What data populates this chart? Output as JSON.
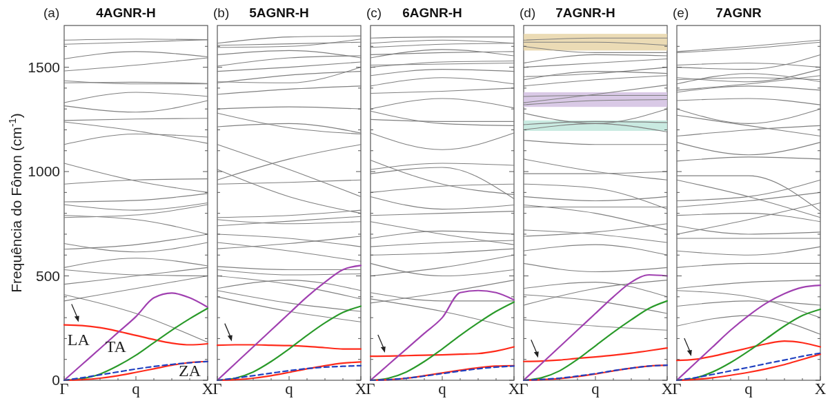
{
  "chart_data": [
    {
      "type": "line",
      "title": "4AGNR-H",
      "ylabel": "Frequência do Fônon (cm$^{-1}$)",
      "annotations": [
        "(a)",
        "LA",
        "TA",
        "ZA"
      ],
      "categories": [
        "Γ",
        null,
        null,
        null,
        "q",
        null,
        null,
        null,
        "X"
      ],
      "ylim": [
        0,
        1700
      ],
      "yticks": [
        0,
        {
          "value": 100,
          "label": null
        },
        {
          "value": 200,
          "label": null
        },
        {
          "value": 300,
          "label": null
        },
        {
          "value": 400,
          "label": null
        },
        500,
        {
          "value": 600,
          "label": null
        },
        {
          "value": 700,
          "label": null
        },
        {
          "value": 800,
          "label": null
        },
        {
          "value": 900,
          "label": null
        },
        1000,
        {
          "value": 1100,
          "label": null
        },
        {
          "value": 1200,
          "label": null
        },
        {
          "value": 1300,
          "label": null
        },
        {
          "value": 1400,
          "label": null
        },
        1500,
        {
          "value": 1600,
          "label": null
        }
      ],
      "color": "#7f7f7f",
      "series": [
        {
          "color": "#ff2a1a",
          "values": [
            265,
            262,
            252,
            235,
            215,
            195,
            178,
            170,
            175
          ]
        },
        {
          "color": "#a040b0",
          "values": [
            0,
            76,
            152,
            229,
            305,
            395,
            418,
            395,
            350
          ]
        },
        {
          "color": "#2a9a2a",
          "values": [
            0,
            8,
            30,
            70,
            120,
            180,
            240,
            295,
            345
          ]
        },
        {
          "color": "#ff2a1a",
          "values": [
            0,
            3,
            10,
            22,
            38,
            55,
            72,
            85,
            90
          ]
        },
        {
          "color": "#2040c0",
          "line_style": "dashed",
          "values": [
            0,
            12,
            26,
            40,
            54,
            66,
            76,
            84,
            90
          ]
        },
        {
          "x": [
            "Γ",
            "q",
            "X"
          ],
          "values": [
            1630,
            1635,
            1632
          ]
        },
        {
          "x": [
            "Γ",
            "q",
            "X"
          ],
          "values": [
            1610,
            1620,
            1632
          ]
        },
        {
          "x": [
            "Γ",
            "q",
            "X"
          ],
          "values": [
            1540,
            1575,
            1550
          ]
        },
        {
          "x": [
            "Γ",
            "q",
            "X"
          ],
          "values": [
            1482,
            1510,
            1545
          ]
        },
        {
          "x": [
            "Γ",
            "q",
            "X"
          ],
          "values": [
            1435,
            1420,
            1420
          ]
        },
        {
          "x": [
            "Γ",
            "q",
            "X"
          ],
          "values": [
            1425,
            1428,
            1422
          ]
        },
        {
          "x": [
            "Γ",
            "q",
            "X"
          ],
          "values": [
            1330,
            1380,
            1360
          ]
        },
        {
          "x": [
            "Γ",
            "q",
            "X"
          ],
          "values": [
            1315,
            1285,
            1340
          ]
        },
        {
          "x": [
            "Γ",
            "q",
            "X"
          ],
          "values": [
            1245,
            1252,
            1255
          ]
        },
        {
          "x": [
            "Γ",
            "q",
            "X"
          ],
          "values": [
            1238,
            1195,
            1135
          ]
        },
        {
          "x": [
            "Γ",
            "q",
            "X"
          ],
          "values": [
            1130,
            1180,
            1165
          ]
        },
        {
          "x": [
            "Γ",
            "q",
            "X"
          ],
          "values": [
            1040,
            955,
            900
          ]
        },
        {
          "x": [
            "Γ",
            "q",
            "X"
          ],
          "values": [
            940,
            960,
            965
          ]
        },
        {
          "x": [
            "Γ",
            "q",
            "X"
          ],
          "values": [
            855,
            862,
            895
          ]
        },
        {
          "x": [
            "Γ",
            "q",
            "X"
          ],
          "values": [
            842,
            815,
            850
          ]
        },
        {
          "x": [
            "Γ",
            "q",
            "X"
          ],
          "values": [
            790,
            770,
            700
          ]
        },
        {
          "x": [
            "Γ",
            "q",
            "X"
          ],
          "values": [
            780,
            792,
            842
          ]
        },
        {
          "x": [
            "Γ",
            "q",
            "X"
          ],
          "values": [
            655,
            615,
            660
          ]
        },
        {
          "x": [
            "Γ",
            "q",
            "X"
          ],
          "values": [
            628,
            650,
            700
          ]
        },
        {
          "x": [
            "Γ",
            "q",
            "X"
          ],
          "values": [
            540,
            585,
            548
          ]
        },
        {
          "x": [
            "Γ",
            "q",
            "X"
          ],
          "values": [
            530,
            505,
            500
          ]
        },
        {
          "x": [
            "Γ",
            "q",
            "X"
          ],
          "values": [
            460,
            500,
            540
          ]
        },
        {
          "x": [
            "Γ",
            "q",
            "X"
          ],
          "values": [
            410,
            320,
            182
          ]
        },
        {
          "x": [
            "Γ",
            "q",
            "X"
          ],
          "values": [
            380,
            440,
            500
          ]
        }
      ]
    },
    {
      "type": "line",
      "title": "5AGNR-H",
      "annotations": [
        "(b)"
      ],
      "tick_labels": "x",
      "categories": [
        "Γ",
        null,
        null,
        null,
        "q",
        null,
        null,
        null,
        "X"
      ],
      "ylim": [
        0,
        1700
      ],
      "yticks": [
        0,
        {
          "value": 100,
          "label": null
        },
        {
          "value": 200,
          "label": null
        },
        {
          "value": 300,
          "label": null
        },
        {
          "value": 400,
          "label": null
        },
        500,
        {
          "value": 600,
          "label": null
        },
        {
          "value": 700,
          "label": null
        },
        {
          "value": 800,
          "label": null
        },
        {
          "value": 900,
          "label": null
        },
        1000,
        {
          "value": 1100,
          "label": null
        },
        {
          "value": 1200,
          "label": null
        },
        {
          "value": 1300,
          "label": null
        },
        {
          "value": 1400,
          "label": null
        },
        1500,
        {
          "value": 1600,
          "label": null
        }
      ],
      "color": "#7f7f7f",
      "series": [
        {
          "color": "#ff2a1a",
          "values": [
            168,
            170,
            170,
            168,
            166,
            162,
            156,
            150,
            150
          ]
        },
        {
          "color": "#a040b0",
          "values": [
            0,
            80,
            160,
            240,
            320,
            400,
            470,
            530,
            550
          ]
        },
        {
          "color": "#2a9a2a",
          "values": [
            0,
            10,
            40,
            90,
            150,
            215,
            275,
            325,
            355
          ]
        },
        {
          "color": "#ff2a1a",
          "values": [
            0,
            3,
            10,
            22,
            38,
            55,
            70,
            82,
            88
          ]
        },
        {
          "color": "#2040c0",
          "line_style": "dashed",
          "values": [
            0,
            10,
            22,
            34,
            46,
            56,
            63,
            67,
            70
          ]
        },
        {
          "x": [
            "Γ",
            "q",
            "X"
          ],
          "values": [
            1615,
            1645,
            1650
          ]
        },
        {
          "x": [
            "Γ",
            "q",
            "X"
          ],
          "values": [
            1605,
            1612,
            1620
          ]
        },
        {
          "x": [
            "Γ",
            "q",
            "X"
          ],
          "values": [
            1595,
            1600,
            1635
          ]
        },
        {
          "x": [
            "Γ",
            "q",
            "X"
          ],
          "values": [
            1560,
            1580,
            1545
          ]
        },
        {
          "x": [
            "Γ",
            "q",
            "X"
          ],
          "values": [
            1505,
            1545,
            1555
          ]
        },
        {
          "x": [
            "Γ",
            "q",
            "X"
          ],
          "values": [
            1480,
            1500,
            1525
          ]
        },
        {
          "x": [
            "Γ",
            "q",
            "X"
          ],
          "values": [
            1430,
            1425,
            1500
          ]
        },
        {
          "x": [
            "Γ",
            "q",
            "X"
          ],
          "values": [
            1425,
            1462,
            1480
          ]
        },
        {
          "x": [
            "Γ",
            "q",
            "X"
          ],
          "values": [
            1370,
            1395,
            1410
          ]
        },
        {
          "x": [
            "Γ",
            "q",
            "X"
          ],
          "values": [
            1300,
            1310,
            1300
          ]
        },
        {
          "x": [
            "Γ",
            "q",
            "X"
          ],
          "values": [
            1280,
            1210,
            1180
          ]
        },
        {
          "x": [
            "Γ",
            "q",
            "X"
          ],
          "values": [
            1215,
            1230,
            1185
          ]
        },
        {
          "x": [
            "Γ",
            "q",
            "X"
          ],
          "values": [
            1130,
            1010,
            880
          ]
        },
        {
          "x": [
            "Γ",
            "q",
            "X"
          ],
          "values": [
            960,
            1060,
            1130
          ]
        },
        {
          "x": [
            "Γ",
            "q",
            "X"
          ],
          "values": [
            940,
            948,
            960
          ]
        },
        {
          "x": [
            "Γ",
            "q",
            "X"
          ],
          "values": [
            1010,
            880,
            800
          ]
        },
        {
          "x": [
            "Γ",
            "q",
            "X"
          ],
          "values": [
            780,
            790,
            815
          ]
        },
        {
          "x": [
            "Γ",
            "q",
            "X"
          ],
          "values": [
            770,
            750,
            760
          ]
        },
        {
          "x": [
            "Γ",
            "q",
            "X"
          ],
          "values": [
            740,
            762,
            785
          ]
        },
        {
          "x": [
            "Γ",
            "q",
            "X"
          ],
          "values": [
            700,
            680,
            640
          ]
        },
        {
          "x": [
            "Γ",
            "q",
            "X"
          ],
          "values": [
            660,
            620,
            570
          ]
        },
        {
          "x": [
            "Γ",
            "q",
            "X"
          ],
          "values": [
            630,
            655,
            690
          ]
        },
        {
          "x": [
            "Γ",
            "q",
            "X"
          ],
          "values": [
            545,
            530,
            530
          ]
        },
        {
          "x": [
            "Γ",
            "q",
            "X"
          ],
          "values": [
            530,
            505,
            510
          ]
        },
        {
          "x": [
            "Γ",
            "q",
            "X"
          ],
          "values": [
            500,
            460,
            390
          ]
        },
        {
          "x": [
            "Γ",
            "q",
            "X"
          ],
          "values": [
            440,
            480,
            430
          ]
        },
        {
          "x": [
            "Γ",
            "q",
            "X"
          ],
          "values": [
            430,
            370,
            330
          ]
        },
        {
          "x": [
            "Γ",
            "q",
            "X"
          ],
          "values": [
            400,
            330,
            280
          ]
        }
      ]
    },
    {
      "type": "line",
      "title": "6AGNR-H",
      "annotations": [
        "(c)"
      ],
      "tick_labels": "x",
      "categories": [
        "Γ",
        null,
        null,
        null,
        "q",
        null,
        null,
        null,
        "X"
      ],
      "ylim": [
        0,
        1700
      ],
      "yticks": [
        0,
        {
          "value": 100,
          "label": null
        },
        {
          "value": 200,
          "label": null
        },
        {
          "value": 300,
          "label": null
        },
        {
          "value": 400,
          "label": null
        },
        500,
        {
          "value": 600,
          "label": null
        },
        {
          "value": 700,
          "label": null
        },
        {
          "value": 800,
          "label": null
        },
        {
          "value": 900,
          "label": null
        },
        1000,
        {
          "value": 1100,
          "label": null
        },
        {
          "value": 1200,
          "label": null
        },
        {
          "value": 1300,
          "label": null
        },
        {
          "value": 1400,
          "label": null
        },
        1500,
        {
          "value": 1600,
          "label": null
        }
      ],
      "color": "#7f7f7f",
      "series": [
        {
          "color": "#ff2a1a",
          "values": [
            115,
            116,
            118,
            120,
            122,
            125,
            128,
            140,
            160
          ]
        },
        {
          "color": "#a040b0",
          "values": [
            0,
            75,
            150,
            225,
            300,
            420,
            430,
            420,
            385
          ]
        },
        {
          "color": "#2a9a2a",
          "values": [
            0,
            10,
            40,
            90,
            150,
            215,
            275,
            330,
            375
          ]
        },
        {
          "color": "#ff2a1a",
          "values": [
            0,
            3,
            10,
            22,
            35,
            48,
            60,
            68,
            70
          ]
        },
        {
          "color": "#2040c0",
          "line_style": "dashed",
          "values": [
            0,
            3,
            10,
            20,
            32,
            44,
            55,
            63,
            68
          ]
        },
        {
          "x": [
            "Γ",
            "q",
            "X"
          ],
          "values": [
            1640,
            1645,
            1645
          ]
        },
        {
          "x": [
            "Γ",
            "q",
            "X"
          ],
          "values": [
            1615,
            1630,
            1615
          ]
        },
        {
          "x": [
            "Γ",
            "q",
            "X"
          ],
          "values": [
            1595,
            1610,
            1615
          ]
        },
        {
          "x": [
            "Γ",
            "q",
            "X"
          ],
          "values": [
            1560,
            1570,
            1575
          ]
        },
        {
          "x": [
            "Γ",
            "q",
            "X"
          ],
          "values": [
            1545,
            1585,
            1555
          ]
        },
        {
          "x": [
            "Γ",
            "q",
            "X"
          ],
          "values": [
            1510,
            1515,
            1520
          ]
        },
        {
          "x": [
            "Γ",
            "q",
            "X"
          ],
          "values": [
            1500,
            1525,
            1530
          ]
        },
        {
          "x": [
            "Γ",
            "q",
            "X"
          ],
          "values": [
            1460,
            1490,
            1480
          ]
        },
        {
          "x": [
            "Γ",
            "q",
            "X"
          ],
          "values": [
            1410,
            1450,
            1420
          ]
        },
        {
          "x": [
            "Γ",
            "q",
            "X"
          ],
          "values": [
            1375,
            1385,
            1400
          ]
        },
        {
          "x": [
            "Γ",
            "q",
            "X"
          ],
          "values": [
            1300,
            1350,
            1305
          ]
        },
        {
          "x": [
            "Γ",
            "q",
            "X"
          ],
          "values": [
            1290,
            1230,
            1220
          ]
        },
        {
          "x": [
            "Γ",
            "q",
            "X"
          ],
          "values": [
            1250,
            1240,
            1240
          ]
        },
        {
          "x": [
            "Γ",
            "q",
            "X"
          ],
          "values": [
            1185,
            1105,
            1185
          ]
        },
        {
          "x": [
            "Γ",
            "q",
            "X"
          ],
          "values": [
            1055,
            940,
            890
          ]
        },
        {
          "x": [
            "Γ",
            "q",
            "X"
          ],
          "values": [
            1010,
            1040,
            1030
          ]
        },
        {
          "x": [
            "Γ",
            "q",
            "X"
          ],
          "values": [
            990,
            1020,
            870
          ]
        },
        {
          "x": [
            "Γ",
            "q",
            "X"
          ],
          "values": [
            900,
            930,
            940
          ]
        },
        {
          "x": [
            "Γ",
            "q",
            "X"
          ],
          "values": [
            880,
            820,
            840
          ]
        },
        {
          "x": [
            "Γ",
            "q",
            "X"
          ],
          "values": [
            790,
            800,
            810
          ]
        },
        {
          "x": [
            "Γ",
            "q",
            "X"
          ],
          "values": [
            760,
            700,
            650
          ]
        },
        {
          "x": [
            "Γ",
            "q",
            "X"
          ],
          "values": [
            680,
            715,
            700
          ]
        },
        {
          "x": [
            "Γ",
            "q",
            "X"
          ],
          "values": [
            640,
            660,
            670
          ]
        },
        {
          "x": [
            "Γ",
            "q",
            "X"
          ],
          "values": [
            600,
            610,
            630
          ]
        },
        {
          "x": [
            "Γ",
            "q",
            "X"
          ],
          "values": [
            560,
            500,
            530
          ]
        },
        {
          "x": [
            "Γ",
            "q",
            "X"
          ],
          "values": [
            500,
            540,
            600
          ]
        },
        {
          "x": [
            "Γ",
            "q",
            "X"
          ],
          "values": [
            420,
            380,
            380
          ]
        },
        {
          "x": [
            "Γ",
            "q",
            "X"
          ],
          "values": [
            390,
            330,
            250
          ]
        },
        {
          "x": [
            "Γ",
            "q",
            "X"
          ],
          "values": [
            370,
            420,
            480
          ]
        }
      ]
    },
    {
      "type": "line",
      "title": "7AGNR-H",
      "annotations": [
        "(d)"
      ],
      "tick_labels": "x",
      "categories": [
        "Γ",
        null,
        null,
        null,
        "q",
        null,
        null,
        null,
        "X"
      ],
      "ylim": [
        0,
        1700
      ],
      "yticks": [
        0,
        {
          "value": 100,
          "label": null
        },
        {
          "value": 200,
          "label": null
        },
        {
          "value": 300,
          "label": null
        },
        {
          "value": 400,
          "label": null
        },
        500,
        {
          "value": 600,
          "label": null
        },
        {
          "value": 700,
          "label": null
        },
        {
          "value": 800,
          "label": null
        },
        {
          "value": 900,
          "label": null
        },
        1000,
        {
          "value": 1100,
          "label": null
        },
        {
          "value": 1200,
          "label": null
        },
        {
          "value": 1300,
          "label": null
        },
        {
          "value": 1400,
          "label": null
        },
        1500,
        {
          "value": 1600,
          "label": null
        }
      ],
      "bands": [
        {
          "axis": "y",
          "from": 1580,
          "to": 1660,
          "color": "#e8d5a8"
        },
        {
          "axis": "y",
          "from": 1310,
          "to": 1380,
          "color": "#d2bfe2"
        },
        {
          "axis": "y",
          "from": 1195,
          "to": 1245,
          "color": "#bfe6dc"
        }
      ],
      "color": "#7f7f7f",
      "series": [
        {
          "color": "#ff2a1a",
          "values": [
            90,
            92,
            97,
            105,
            112,
            120,
            130,
            142,
            155
          ]
        },
        {
          "color": "#a040b0",
          "values": [
            0,
            80,
            160,
            240,
            320,
            400,
            470,
            505,
            500
          ]
        },
        {
          "color": "#2a9a2a",
          "values": [
            0,
            12,
            45,
            100,
            165,
            230,
            290,
            345,
            380
          ]
        },
        {
          "color": "#ff2a1a",
          "values": [
            0,
            3,
            8,
            18,
            30,
            45,
            58,
            68,
            72
          ]
        },
        {
          "color": "#2040c0",
          "line_style": "dashed",
          "values": [
            0,
            4,
            10,
            20,
            32,
            46,
            58,
            68,
            72
          ]
        },
        {
          "x": [
            "Γ",
            "q",
            "X"
          ],
          "values": [
            1630,
            1640,
            1640
          ]
        },
        {
          "x": [
            "Γ",
            "q",
            "X"
          ],
          "values": [
            1620,
            1620,
            1605
          ]
        },
        {
          "x": [
            "Γ",
            "q",
            "X"
          ],
          "values": [
            1600,
            1570,
            1570
          ]
        },
        {
          "x": [
            "Γ",
            "q",
            "X"
          ],
          "values": [
            1520,
            1560,
            1555
          ]
        },
        {
          "x": [
            "Γ",
            "q",
            "X"
          ],
          "values": [
            1500,
            1520,
            1540
          ]
        },
        {
          "x": [
            "Γ",
            "q",
            "X"
          ],
          "values": [
            1455,
            1470,
            1500
          ]
        },
        {
          "x": [
            "Γ",
            "q",
            "X"
          ],
          "values": [
            1440,
            1480,
            1470
          ]
        },
        {
          "x": [
            "Γ",
            "q",
            "X"
          ],
          "values": [
            1410,
            1440,
            1460
          ]
        },
        {
          "x": [
            "Γ",
            "q",
            "X"
          ],
          "values": [
            1330,
            1370,
            1415
          ]
        },
        {
          "x": [
            "Γ",
            "q",
            "X"
          ],
          "values": [
            1360,
            1365,
            1365
          ]
        },
        {
          "x": [
            "Γ",
            "q",
            "X"
          ],
          "values": [
            1320,
            1340,
            1345
          ]
        },
        {
          "x": [
            "Γ",
            "q",
            "X"
          ],
          "values": [
            1280,
            1230,
            1300
          ]
        },
        {
          "x": [
            "Γ",
            "q",
            "X"
          ],
          "values": [
            1225,
            1240,
            1235
          ]
        },
        {
          "x": [
            "Γ",
            "q",
            "X"
          ],
          "values": [
            1200,
            1230,
            1190
          ]
        },
        {
          "x": [
            "Γ",
            "q",
            "X"
          ],
          "values": [
            1150,
            1130,
            1130
          ]
        },
        {
          "x": [
            "Γ",
            "q",
            "X"
          ],
          "values": [
            1060,
            1000,
            960
          ]
        },
        {
          "x": [
            "Γ",
            "q",
            "X"
          ],
          "values": [
            990,
            990,
            1000
          ]
        },
        {
          "x": [
            "Γ",
            "q",
            "X"
          ],
          "values": [
            940,
            920,
            820
          ]
        },
        {
          "x": [
            "Γ",
            "q",
            "X"
          ],
          "values": [
            880,
            860,
            880
          ]
        },
        {
          "x": [
            "Γ",
            "q",
            "X"
          ],
          "values": [
            840,
            800,
            720
          ]
        },
        {
          "x": [
            "Γ",
            "q",
            "X"
          ],
          "values": [
            830,
            830,
            830
          ]
        },
        {
          "x": [
            "Γ",
            "q",
            "X"
          ],
          "values": [
            720,
            700,
            660
          ]
        },
        {
          "x": [
            "Γ",
            "q",
            "X"
          ],
          "values": [
            690,
            710,
            750
          ]
        },
        {
          "x": [
            "Γ",
            "q",
            "X"
          ],
          "values": [
            620,
            650,
            600
          ]
        },
        {
          "x": [
            "Γ",
            "q",
            "X"
          ],
          "values": [
            560,
            520,
            540
          ]
        },
        {
          "x": [
            "Γ",
            "q",
            "X"
          ],
          "values": [
            440,
            470,
            400
          ]
        },
        {
          "x": [
            "Γ",
            "q",
            "X"
          ],
          "values": [
            410,
            380,
            320
          ]
        },
        {
          "x": [
            "Γ",
            "q",
            "X"
          ],
          "values": [
            360,
            440,
            480
          ]
        },
        {
          "x": [
            "Γ",
            "q",
            "X"
          ],
          "values": [
            290,
            260,
            240
          ]
        }
      ]
    },
    {
      "type": "line",
      "title": "7AGNR",
      "annotations": [
        "(e)"
      ],
      "tick_labels": "x",
      "categories": [
        "Γ",
        null,
        null,
        null,
        "q",
        null,
        null,
        null,
        "X"
      ],
      "ylim": [
        0,
        1700
      ],
      "yticks": [
        0,
        {
          "value": 100,
          "label": null
        },
        {
          "value": 200,
          "label": null
        },
        {
          "value": 300,
          "label": null
        },
        {
          "value": 400,
          "label": null
        },
        500,
        {
          "value": 600,
          "label": null
        },
        {
          "value": 700,
          "label": null
        },
        {
          "value": 800,
          "label": null
        },
        {
          "value": 900,
          "label": null
        },
        1000,
        {
          "value": 1100,
          "label": null
        },
        {
          "value": 1200,
          "label": null
        },
        {
          "value": 1300,
          "label": null
        },
        {
          "value": 1400,
          "label": null
        },
        1500,
        {
          "value": 1600,
          "label": null
        }
      ],
      "color": "#7f7f7f",
      "series": [
        {
          "color": "#ff2a1a",
          "values": [
            95,
            100,
            115,
            135,
            155,
            175,
            188,
            180,
            160
          ]
        },
        {
          "color": "#a040b0",
          "values": [
            0,
            80,
            160,
            240,
            310,
            370,
            415,
            445,
            455
          ]
        },
        {
          "color": "#2a9a2a",
          "values": [
            0,
            10,
            40,
            85,
            140,
            200,
            260,
            310,
            340
          ]
        },
        {
          "color": "#ff2a1a",
          "values": [
            0,
            4,
            12,
            24,
            38,
            55,
            75,
            100,
            125
          ]
        },
        {
          "color": "#2040c0",
          "line_style": "dashed",
          "values": [
            0,
            12,
            28,
            45,
            62,
            80,
            97,
            115,
            130
          ]
        },
        {
          "x": [
            "Γ",
            "q",
            "X"
          ],
          "values": [
            1575,
            1600,
            1630
          ]
        },
        {
          "x": [
            "Γ",
            "q",
            "X"
          ],
          "values": [
            1570,
            1590,
            1620
          ]
        },
        {
          "x": [
            "Γ",
            "q",
            "X"
          ],
          "values": [
            1510,
            1520,
            1500
          ]
        },
        {
          "x": [
            "Γ",
            "q",
            "X"
          ],
          "values": [
            1500,
            1490,
            1560
          ]
        },
        {
          "x": [
            "Γ",
            "q",
            "X"
          ],
          "values": [
            1450,
            1430,
            1490
          ]
        },
        {
          "x": [
            "Γ",
            "q",
            "X"
          ],
          "values": [
            1440,
            1450,
            1440
          ]
        },
        {
          "x": [
            "Γ",
            "q",
            "X"
          ],
          "values": [
            1420,
            1470,
            1430
          ]
        },
        {
          "x": [
            "Γ",
            "q",
            "X"
          ],
          "values": [
            1390,
            1420,
            1460
          ]
        },
        {
          "x": [
            "Γ",
            "q",
            "X"
          ],
          "values": [
            1380,
            1410,
            1390
          ]
        },
        {
          "x": [
            "Γ",
            "q",
            "X"
          ],
          "values": [
            1340,
            1350,
            1320
          ]
        },
        {
          "x": [
            "Γ",
            "q",
            "X"
          ],
          "values": [
            1300,
            1230,
            1300
          ]
        },
        {
          "x": [
            "Γ",
            "q",
            "X"
          ],
          "values": [
            1270,
            1220,
            1170
          ]
        },
        {
          "x": [
            "Γ",
            "q",
            "X"
          ],
          "values": [
            1170,
            1200,
            1220
          ]
        },
        {
          "x": [
            "Γ",
            "q",
            "X"
          ],
          "values": [
            1140,
            1080,
            1140
          ]
        },
        {
          "x": [
            "Γ",
            "q",
            "X"
          ],
          "values": [
            1050,
            1070,
            1060
          ]
        },
        {
          "x": [
            "Γ",
            "q",
            "X"
          ],
          "values": [
            980,
            980,
            810
          ]
        },
        {
          "x": [
            "Γ",
            "q",
            "X"
          ],
          "values": [
            960,
            880,
            780
          ]
        },
        {
          "x": [
            "Γ",
            "q",
            "X"
          ],
          "values": [
            860,
            880,
            960
          ]
        },
        {
          "x": [
            "Γ",
            "q",
            "X"
          ],
          "values": [
            830,
            860,
            900
          ]
        },
        {
          "x": [
            "Γ",
            "q",
            "X"
          ],
          "values": [
            790,
            800,
            760
          ]
        },
        {
          "x": [
            "Γ",
            "q",
            "X"
          ],
          "values": [
            740,
            700,
            710
          ]
        },
        {
          "x": [
            "Γ",
            "q",
            "X"
          ],
          "values": [
            700,
            770,
            850
          ]
        },
        {
          "x": [
            "Γ",
            "q",
            "X"
          ],
          "values": [
            680,
            680,
            680
          ]
        },
        {
          "x": [
            "Γ",
            "q",
            "X"
          ],
          "values": [
            620,
            600,
            640
          ]
        },
        {
          "x": [
            "Γ",
            "q",
            "X"
          ],
          "values": [
            540,
            560,
            560
          ]
        },
        {
          "x": [
            "Γ",
            "q",
            "X"
          ],
          "values": [
            440,
            470,
            480
          ]
        },
        {
          "x": [
            "Γ",
            "q",
            "X"
          ],
          "values": [
            430,
            400,
            300
          ]
        },
        {
          "x": [
            "Γ",
            "q",
            "X"
          ],
          "values": [
            355,
            380,
            360
          ]
        },
        {
          "x": [
            "Γ",
            "q",
            "X"
          ],
          "values": [
            260,
            310,
            220
          ]
        }
      ]
    }
  ]
}
